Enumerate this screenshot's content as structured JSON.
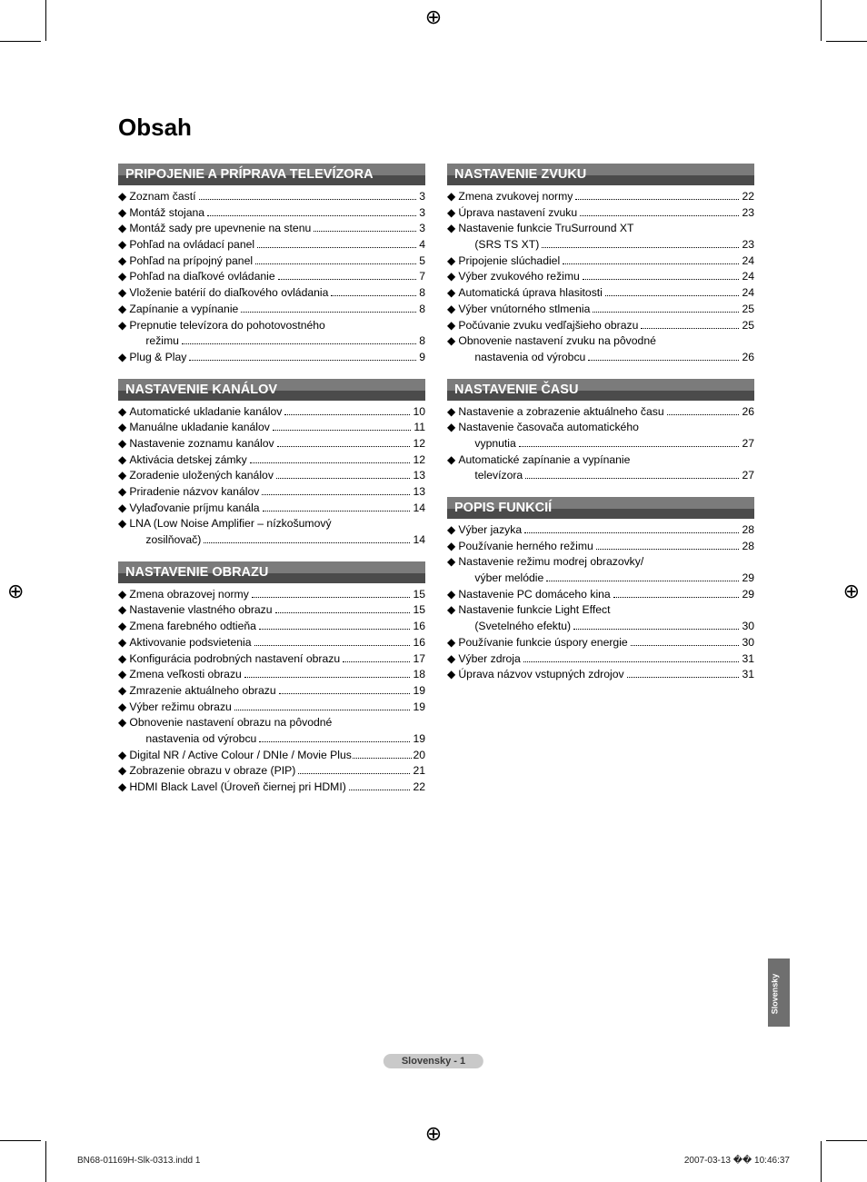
{
  "title": "Obsah",
  "side_tab": "Slovensky",
  "page_label": "Slovensky - 1",
  "print_left": "BN68-01169H-Slk-0313.indd   1",
  "print_right": "2007-03-13   �� 10:46:37",
  "left_sections": [
    {
      "header": "PRIPOJENIE A PRÍPRAVA TELEVÍZORA",
      "items": [
        {
          "label": "Zoznam častí",
          "page": "3"
        },
        {
          "label": "Montáž stojana",
          "page": "3"
        },
        {
          "label": "Montáž sady pre upevnenie na stenu",
          "page": "3"
        },
        {
          "label": "Pohľad na ovládací panel",
          "page": "4"
        },
        {
          "label": "Pohľad na prípojný panel",
          "page": "5"
        },
        {
          "label": "Pohľad na diaľkové ovládanie",
          "page": "7"
        },
        {
          "label": "Vloženie batérií do diaľkového ovládania",
          "page": "8"
        },
        {
          "label": "Zapínanie a vypínanie",
          "page": "8"
        },
        {
          "label": "Prepnutie televízora do pohotovostného",
          "page": ""
        },
        {
          "label": "režimu",
          "page": "8",
          "continuation": true
        },
        {
          "label": "Plug & Play",
          "page": "9"
        }
      ]
    },
    {
      "header": "NASTAVENIE KANÁLOV",
      "items": [
        {
          "label": "Automatické ukladanie kanálov",
          "page": "10"
        },
        {
          "label": "Manuálne ukladanie kanálov",
          "page": "11"
        },
        {
          "label": "Nastavenie zoznamu kanálov",
          "page": "12"
        },
        {
          "label": "Aktivácia detskej zámky",
          "page": "12"
        },
        {
          "label": "Zoradenie uložených kanálov",
          "page": "13"
        },
        {
          "label": "Priradenie názvov kanálov",
          "page": "13"
        },
        {
          "label": "Vylaďovanie príjmu kanála",
          "page": "14"
        },
        {
          "label": "LNA (Low Noise Amplifier – nízkošumový",
          "page": ""
        },
        {
          "label": "zosilňovač)",
          "page": "14",
          "continuation": true
        }
      ]
    },
    {
      "header": "NASTAVENIE OBRAZU",
      "items": [
        {
          "label": "Zmena obrazovej normy",
          "page": "15"
        },
        {
          "label": "Nastavenie vlastného obrazu",
          "page": "15"
        },
        {
          "label": "Zmena farebného odtieňa",
          "page": "16"
        },
        {
          "label": "Aktivovanie podsvietenia",
          "page": "16"
        },
        {
          "label": "Konfigurácia podrobných nastavení obrazu",
          "page": "17"
        },
        {
          "label": "Zmena veľkosti obrazu",
          "page": "18"
        },
        {
          "label": "Zmrazenie aktuálneho obrazu",
          "page": "19"
        },
        {
          "label": "Výber režimu obrazu",
          "page": "19"
        },
        {
          "label": "Obnovenie nastavení obrazu na pôvodné",
          "page": ""
        },
        {
          "label": "nastavenia od výrobcu",
          "page": "19",
          "continuation": true
        },
        {
          "label": "Digital NR / Active Colour / DNIe / Movie Plus",
          "page": "20",
          "tightdots": true
        },
        {
          "label": "Zobrazenie obrazu v obraze (PIP)",
          "page": "21"
        },
        {
          "label": "HDMI Black Lavel (Úroveň čiernej pri HDMI)",
          "page": "22"
        }
      ]
    }
  ],
  "right_sections": [
    {
      "header": "NASTAVENIE ZVUKU",
      "items": [
        {
          "label": "Zmena zvukovej normy",
          "page": "22"
        },
        {
          "label": "Úprava nastavení zvuku",
          "page": "23"
        },
        {
          "label": "Nastavenie funkcie TruSurround XT",
          "page": ""
        },
        {
          "label": "(SRS TS XT)",
          "page": "23",
          "continuation": true
        },
        {
          "label": "Pripojenie slúchadiel",
          "page": "24"
        },
        {
          "label": "Výber zvukového režimu",
          "page": "24"
        },
        {
          "label": "Automatická úprava hlasitosti",
          "page": "24"
        },
        {
          "label": "Výber vnútorného stlmenia",
          "page": "25"
        },
        {
          "label": "Počúvanie zvuku vedľajšieho obrazu",
          "page": "25"
        },
        {
          "label": "Obnovenie nastavení zvuku na pôvodné",
          "page": ""
        },
        {
          "label": "nastavenia od výrobcu",
          "page": "26",
          "continuation": true
        }
      ]
    },
    {
      "header": "NASTAVENIE ČASU",
      "items": [
        {
          "label": "Nastavenie a zobrazenie aktuálneho času",
          "page": "26"
        },
        {
          "label": "Nastavenie časovača automatického",
          "page": ""
        },
        {
          "label": "vypnutia",
          "page": "27",
          "continuation": true
        },
        {
          "label": "Automatické zapínanie a vypínanie",
          "page": ""
        },
        {
          "label": "televízora",
          "page": "27",
          "continuation": true
        }
      ]
    },
    {
      "header": "POPIS FUNKCIÍ",
      "items": [
        {
          "label": "Výber jazyka",
          "page": "28"
        },
        {
          "label": "Používanie herného režimu",
          "page": "28"
        },
        {
          "label": "Nastavenie režimu modrej obrazovky/",
          "page": ""
        },
        {
          "label": "výber melódie",
          "page": "29",
          "continuation": true
        },
        {
          "label": "Nastavenie PC domáceho kina",
          "page": "29"
        },
        {
          "label": "Nastavenie funkcie Light Effect",
          "page": ""
        },
        {
          "label": "(Svetelného efektu)",
          "page": "30",
          "continuation": true
        },
        {
          "label": "Používanie funkcie úspory energie",
          "page": "30"
        },
        {
          "label": "Výber zdroja",
          "page": "31"
        },
        {
          "label": "Úprava názvov vstupných zdrojov",
          "page": "31"
        }
      ]
    }
  ]
}
